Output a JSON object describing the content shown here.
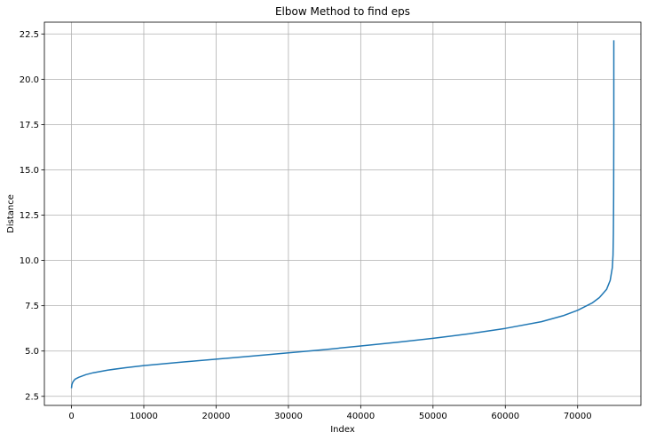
{
  "chart_data": {
    "type": "line",
    "title": "Elbow Method to find eps",
    "xlabel": "Index",
    "ylabel": "Distance",
    "xlim": [
      -3750,
      78750
    ],
    "ylim": [
      2.0,
      23.15
    ],
    "grid": true,
    "xticks": [
      0,
      10000,
      20000,
      30000,
      40000,
      50000,
      60000,
      70000
    ],
    "xtick_labels": [
      "0",
      "10000",
      "20000",
      "30000",
      "40000",
      "50000",
      "60000",
      "70000"
    ],
    "yticks": [
      2.5,
      5.0,
      7.5,
      10.0,
      12.5,
      15.0,
      17.5,
      20.0,
      22.5
    ],
    "ytick_labels": [
      "2.5",
      "5.0",
      "7.5",
      "10.0",
      "12.5",
      "15.0",
      "17.5",
      "20.0",
      "22.5"
    ],
    "color": "#1f77b4",
    "series": [
      {
        "x": [
          0,
          50,
          200,
          500,
          1000,
          2000,
          3000,
          5000,
          7500,
          10000,
          15000,
          20000,
          25000,
          30000,
          35000,
          40000,
          45000,
          50000,
          55000,
          60000,
          65000,
          68000,
          70000,
          72000,
          73000,
          74000,
          74500,
          74800,
          74900,
          74950,
          74980,
          75000,
          75000
        ],
        "y": [
          2.95,
          3.15,
          3.3,
          3.45,
          3.55,
          3.7,
          3.8,
          3.95,
          4.08,
          4.2,
          4.38,
          4.55,
          4.72,
          4.9,
          5.08,
          5.28,
          5.48,
          5.7,
          5.95,
          6.25,
          6.62,
          6.95,
          7.25,
          7.65,
          7.95,
          8.4,
          8.9,
          9.6,
          10.3,
          11.5,
          13.5,
          17.5,
          22.15
        ]
      }
    ]
  }
}
